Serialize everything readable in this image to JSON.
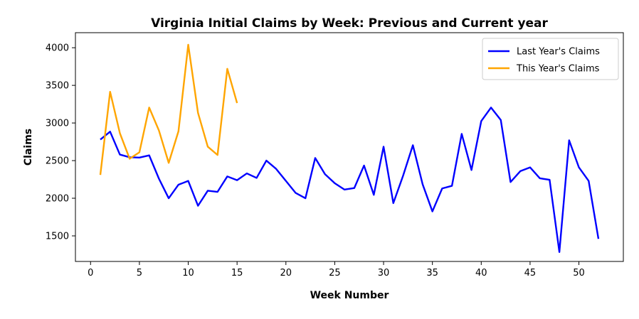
{
  "chart_data": {
    "type": "line",
    "title": "Virginia Initial Claims by Week: Previous and Current year",
    "xlabel": "Week Number",
    "ylabel": "Claims",
    "xlim": [
      -1.55,
      54.55
    ],
    "ylim": [
      1160,
      4200
    ],
    "xticks": [
      0,
      5,
      10,
      15,
      20,
      25,
      30,
      35,
      40,
      45,
      50
    ],
    "yticks": [
      1500,
      2000,
      2500,
      3000,
      3500,
      4000
    ],
    "grid": false,
    "legend_position": "top-right",
    "series": [
      {
        "name": "Last Year's Claims",
        "color": "#0000ff",
        "x": [
          1,
          2,
          3,
          4,
          5,
          6,
          7,
          8,
          9,
          10,
          11,
          12,
          13,
          14,
          15,
          16,
          17,
          18,
          19,
          20,
          21,
          22,
          23,
          24,
          25,
          26,
          27,
          28,
          29,
          30,
          31,
          32,
          33,
          34,
          35,
          36,
          37,
          38,
          39,
          40,
          41,
          42,
          43,
          44,
          45,
          46,
          47,
          48,
          49,
          50,
          51,
          52
        ],
        "values": [
          2780,
          2885,
          2580,
          2545,
          2540,
          2570,
          2260,
          2000,
          2180,
          2230,
          1900,
          2100,
          2085,
          2290,
          2240,
          2330,
          2270,
          2500,
          2390,
          2230,
          2070,
          2000,
          2535,
          2320,
          2200,
          2115,
          2135,
          2435,
          2045,
          2685,
          1935,
          2300,
          2705,
          2185,
          1825,
          2130,
          2165,
          2855,
          2375,
          3025,
          3205,
          3040,
          2215,
          2360,
          2410,
          2265,
          2245,
          1285,
          2770,
          2410,
          2230,
          1460
        ]
      },
      {
        "name": "This Year's Claims",
        "color": "#ffa500",
        "x": [
          1,
          2,
          3,
          4,
          5,
          6,
          7,
          8,
          9,
          10,
          11,
          12,
          13,
          14,
          15
        ],
        "values": [
          2310,
          3415,
          2865,
          2525,
          2610,
          3205,
          2900,
          2470,
          2890,
          4040,
          3135,
          2685,
          2575,
          3720,
          3265
        ]
      }
    ]
  }
}
